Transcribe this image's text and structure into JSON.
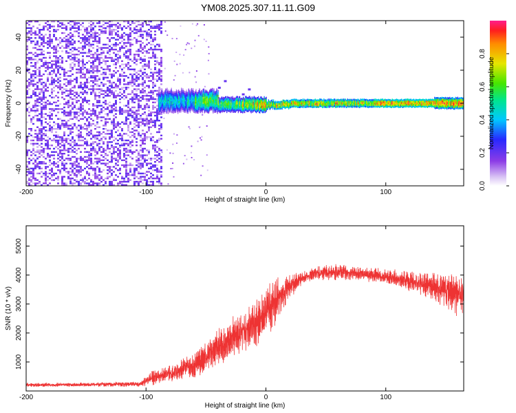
{
  "title": "YM08.2025.307.11.11.G09",
  "chart_data": [
    {
      "type": "heatmap",
      "xlabel": "Height of straight line (km)",
      "ylabel": "Frequency (Hz)",
      "xlim": [
        -200,
        165
      ],
      "ylim": [
        -50,
        50
      ],
      "x_ticks": [
        -200,
        -100,
        0,
        100
      ],
      "y_ticks": [
        -40,
        -20,
        0,
        20,
        40
      ],
      "colorbar": {
        "label": "Normalized spectral amplitude",
        "range": [
          0,
          1
        ],
        "ticks": [
          "0.0",
          "0.2",
          "0.4",
          "0.6",
          "0.8"
        ]
      },
      "regions": [
        {
          "name": "noise",
          "x_range": [
            -200,
            -88
          ],
          "freq_range": [
            -50,
            50
          ],
          "amplitude": 0.1
        },
        {
          "name": "signal-onset",
          "x_range": [
            -88,
            -40
          ],
          "freq_center": 2,
          "amplitude": 0.4
        },
        {
          "name": "carrier",
          "x_range": [
            -40,
            165
          ],
          "freq_center": 0,
          "amplitude": 0.9
        }
      ]
    },
    {
      "type": "line",
      "xlabel": "Height of straight line (km)",
      "ylabel": "SNR (10 * v/v)",
      "xlim": [
        -200,
        165
      ],
      "ylim": [
        0,
        5700
      ],
      "x_ticks": [
        -200,
        -100,
        0,
        100
      ],
      "y_ticks": [
        1000,
        2000,
        3000,
        4000,
        5000
      ],
      "series": [
        {
          "name": "SNR",
          "color": "#ee3333",
          "x": [
            -200,
            -150,
            -105,
            -95,
            -80,
            -60,
            -40,
            -20,
            0,
            10,
            20,
            30,
            40,
            60,
            80,
            100,
            120,
            140,
            160,
            165
          ],
          "mean": [
            210,
            220,
            240,
            450,
            600,
            900,
            1500,
            2000,
            2700,
            3200,
            3600,
            3900,
            4050,
            4100,
            4050,
            3950,
            3800,
            3600,
            3400,
            3300
          ],
          "spread": [
            120,
            120,
            150,
            400,
            500,
            800,
            1100,
            1400,
            1500,
            1300,
            700,
            400,
            400,
            500,
            400,
            450,
            600,
            900,
            1300,
            1400
          ]
        }
      ]
    }
  ]
}
